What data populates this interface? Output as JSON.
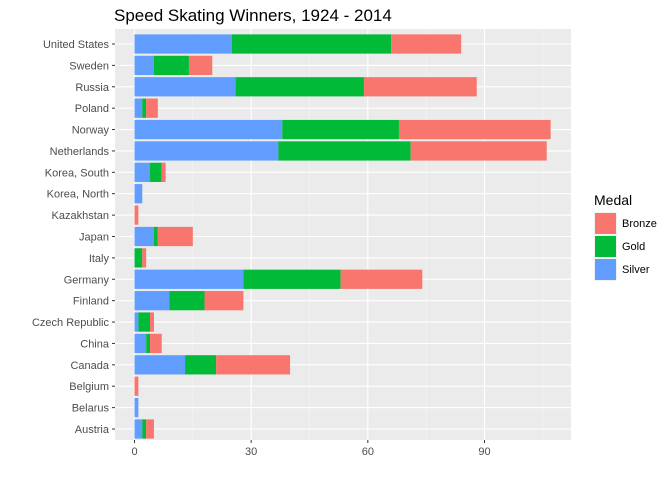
{
  "chart_data": {
    "type": "bar",
    "orientation": "horizontal",
    "stacked": true,
    "title": "Speed Skating Winners, 1924 - 2014",
    "xlabel": "",
    "ylabel": "",
    "xlim": [
      0,
      112
    ],
    "xticks": [
      0,
      30,
      60,
      90
    ],
    "grid": true,
    "legend_title": "Medal",
    "legend_position": "right",
    "categories": [
      "United States",
      "Sweden",
      "Russia",
      "Poland",
      "Norway",
      "Netherlands",
      "Korea, South",
      "Korea, North",
      "Kazakhstan",
      "Japan",
      "Italy",
      "Germany",
      "Finland",
      "Czech Republic",
      "China",
      "Canada",
      "Belgium",
      "Belarus",
      "Austria"
    ],
    "series": [
      {
        "name": "Silver",
        "color": "#619CFF",
        "values": [
          25,
          5,
          26,
          2,
          38,
          37,
          4,
          2,
          0,
          5,
          0,
          28,
          9,
          1,
          3,
          13,
          0,
          1,
          2
        ]
      },
      {
        "name": "Gold",
        "color": "#00BA38",
        "values": [
          41,
          9,
          33,
          1,
          30,
          34,
          3,
          0,
          0,
          1,
          2,
          25,
          9,
          3,
          1,
          8,
          0,
          0,
          1
        ]
      },
      {
        "name": "Bronze",
        "color": "#F8766D",
        "values": [
          18,
          6,
          29,
          3,
          39,
          35,
          1,
          0,
          1,
          9,
          1,
          21,
          10,
          1,
          3,
          19,
          1,
          0,
          2
        ]
      }
    ],
    "legend_order": [
      "Bronze",
      "Gold",
      "Silver"
    ]
  }
}
